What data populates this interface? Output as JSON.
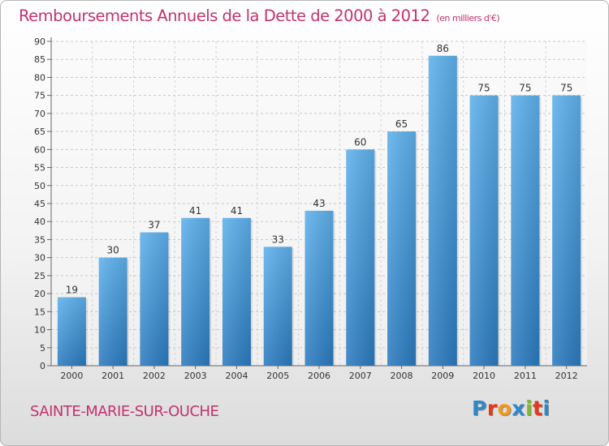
{
  "header": {
    "title": "Remboursements Annuels de la Dette de 2000 à 2012",
    "unit": "(en milliers d'€)"
  },
  "footer": {
    "town": "SAINTE-MARIE-SUR-OUCHE",
    "logo_letters": [
      "P",
      "r",
      "o",
      "x",
      "i",
      "t",
      "i"
    ],
    "logo_colors": [
      "#2f88c8",
      "#e6381b",
      "#f29a1a",
      "#2f88c8",
      "#7dbb2d",
      "#e6381b",
      "#2f88c8"
    ]
  },
  "chart_data": {
    "type": "bar",
    "categories": [
      "2000",
      "2001",
      "2002",
      "2003",
      "2004",
      "2005",
      "2006",
      "2007",
      "2008",
      "2009",
      "2010",
      "2011",
      "2012"
    ],
    "values": [
      19,
      30,
      37,
      41,
      41,
      33,
      43,
      60,
      65,
      86,
      75,
      75,
      75
    ],
    "title": "Remboursements Annuels de la Dette de 2000 à 2012",
    "xlabel": "",
    "ylabel": "",
    "ylim": [
      0,
      90
    ],
    "yticks": [
      0,
      5,
      10,
      15,
      20,
      25,
      30,
      35,
      40,
      45,
      50,
      55,
      60,
      65,
      70,
      75,
      80,
      85,
      90
    ],
    "grid": true,
    "bar_color": "#4a9fde",
    "bar_color_dark": "#2b7bbf"
  }
}
